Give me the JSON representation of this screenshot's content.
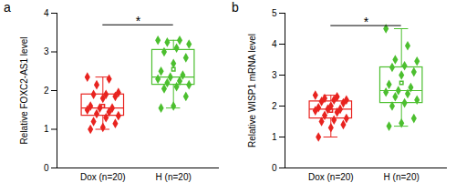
{
  "chart_data": [
    {
      "type": "box",
      "panel": "a",
      "y_label": "Relative FOXC2-AS1 level",
      "categories": [
        "Dox (n=20)",
        "H (n=20)"
      ],
      "colors": [
        "#e8231f",
        "#4cbf2f"
      ],
      "points": [
        [
          2.35,
          2.3,
          2.15,
          1.95,
          1.9,
          1.9,
          1.85,
          1.8,
          1.6,
          1.55,
          1.55,
          1.5,
          1.45,
          1.4,
          1.35,
          1.3,
          1.2,
          1.15,
          1.05,
          1.0
        ],
        [
          3.3,
          3.3,
          3.25,
          3.2,
          3.1,
          3.0,
          2.85,
          2.7,
          2.5,
          2.4,
          2.35,
          2.3,
          2.25,
          2.2,
          2.15,
          2.1,
          2.05,
          1.85,
          1.6,
          1.55
        ]
      ],
      "boxes": [
        {
          "min": 1.0,
          "q1": 1.35,
          "median": 1.55,
          "q3": 1.9,
          "max": 2.35,
          "mean": 1.6
        },
        {
          "min": 1.55,
          "q1": 2.15,
          "median": 2.35,
          "q3": 3.05,
          "max": 3.3,
          "mean": 2.55
        }
      ],
      "ylim": [
        0,
        4
      ],
      "yticks": [
        0,
        1,
        2,
        3,
        4
      ],
      "annotations": [
        {
          "text": "*",
          "y": 3.7
        }
      ]
    },
    {
      "type": "box",
      "panel": "b",
      "y_label": "Relative WISP1 mRNA level",
      "categories": [
        "Dox (n=20)",
        "H (n=20)"
      ],
      "colors": [
        "#e8231f",
        "#4cbf2f"
      ],
      "points": [
        [
          2.35,
          2.3,
          2.25,
          2.2,
          2.2,
          2.15,
          2.1,
          2.0,
          1.95,
          1.9,
          1.9,
          1.85,
          1.8,
          1.7,
          1.6,
          1.55,
          1.5,
          1.4,
          1.3,
          1.0
        ],
        [
          4.5,
          3.95,
          3.5,
          3.45,
          3.3,
          3.25,
          3.1,
          3.0,
          2.7,
          2.6,
          2.5,
          2.45,
          2.4,
          2.3,
          2.2,
          2.1,
          2.0,
          1.6,
          1.45,
          1.35
        ]
      ],
      "boxes": [
        {
          "min": 1.0,
          "q1": 1.6,
          "median": 1.9,
          "q3": 2.15,
          "max": 2.35,
          "mean": 1.85
        },
        {
          "min": 1.35,
          "q1": 2.1,
          "median": 2.5,
          "q3": 3.25,
          "max": 4.5,
          "mean": 2.75
        }
      ],
      "ylim": [
        0,
        5
      ],
      "yticks": [
        0,
        1,
        2,
        3,
        4,
        5
      ],
      "annotations": [
        {
          "text": "*",
          "y": 4.6
        }
      ]
    }
  ]
}
